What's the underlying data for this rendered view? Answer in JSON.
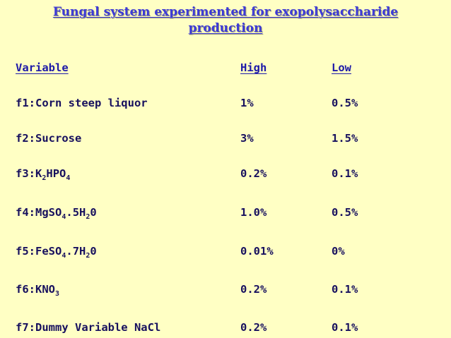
{
  "title": {
    "line1": "Fungal system experimented for exopolysaccharide",
    "line2": "production"
  },
  "headers": {
    "variable": "Variable",
    "high": "High",
    "low": "Low"
  },
  "rows": [
    {
      "variable_parts": [
        {
          "t": "f1:Corn steep liquor"
        }
      ],
      "high": "1%",
      "low": "0.5%"
    },
    {
      "variable_parts": [
        {
          "t": "f2:Sucrose"
        }
      ],
      "high": "3%",
      "low": "1.5%"
    },
    {
      "variable_parts": [
        {
          "t": "f3:K"
        },
        {
          "sub": "2"
        },
        {
          "t": "HPO"
        },
        {
          "sub": "4"
        }
      ],
      "high": "0.2%",
      "low": "0.1%"
    },
    {
      "variable_parts": [
        {
          "t": "f4:MgSO"
        },
        {
          "sub": "4"
        },
        {
          "t": ".5H"
        },
        {
          "sub": "2"
        },
        {
          "t": "0"
        }
      ],
      "high": "1.0%",
      "low": "0.5%"
    },
    {
      "variable_parts": [
        {
          "t": "f5:FeSO"
        },
        {
          "sub": "4"
        },
        {
          "t": ".7H"
        },
        {
          "sub": "2"
        },
        {
          "t": "0"
        }
      ],
      "high": "0.01%",
      "low": "0%"
    },
    {
      "variable_parts": [
        {
          "t": "f6:KNO"
        },
        {
          "sub": "3"
        }
      ],
      "high": "0.2%",
      "low": "0.1%"
    },
    {
      "variable_parts": [
        {
          "t": "f7:Dummy Variable NaCl"
        }
      ],
      "high": "0.2%",
      "low": "0.1%"
    }
  ]
}
